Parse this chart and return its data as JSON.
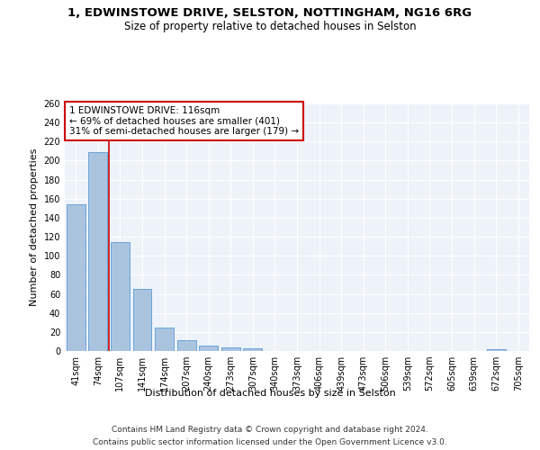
{
  "title_line1": "1, EDWINSTOWE DRIVE, SELSTON, NOTTINGHAM, NG16 6RG",
  "title_line2": "Size of property relative to detached houses in Selston",
  "xlabel": "Distribution of detached houses by size in Selston",
  "ylabel": "Number of detached properties",
  "categories": [
    "41sqm",
    "74sqm",
    "107sqm",
    "141sqm",
    "174sqm",
    "207sqm",
    "240sqm",
    "273sqm",
    "307sqm",
    "340sqm",
    "373sqm",
    "406sqm",
    "439sqm",
    "473sqm",
    "506sqm",
    "539sqm",
    "572sqm",
    "605sqm",
    "639sqm",
    "672sqm",
    "705sqm"
  ],
  "values": [
    154,
    209,
    114,
    65,
    25,
    11,
    6,
    4,
    3,
    0,
    0,
    0,
    0,
    0,
    0,
    0,
    0,
    0,
    0,
    2,
    0
  ],
  "bar_color": "#aac4e0",
  "bar_edge_color": "#5b9bd5",
  "vline_x": 1.5,
  "vline_color": "#cc0000",
  "annotation_text": "1 EDWINSTOWE DRIVE: 116sqm\n← 69% of detached houses are smaller (401)\n31% of semi-detached houses are larger (179) →",
  "annotation_box_color": "#ffffff",
  "annotation_box_edge": "#cc0000",
  "ylim": [
    0,
    260
  ],
  "yticks": [
    0,
    20,
    40,
    60,
    80,
    100,
    120,
    140,
    160,
    180,
    200,
    220,
    240,
    260
  ],
  "footer_line1": "Contains HM Land Registry data © Crown copyright and database right 2024.",
  "footer_line2": "Contains public sector information licensed under the Open Government Licence v3.0.",
  "bg_color": "#eef2f9",
  "grid_color": "#ffffff",
  "title_fontsize": 9.5,
  "subtitle_fontsize": 8.5,
  "axis_label_fontsize": 8,
  "tick_fontsize": 7,
  "annotation_fontsize": 7.5,
  "footer_fontsize": 6.5
}
